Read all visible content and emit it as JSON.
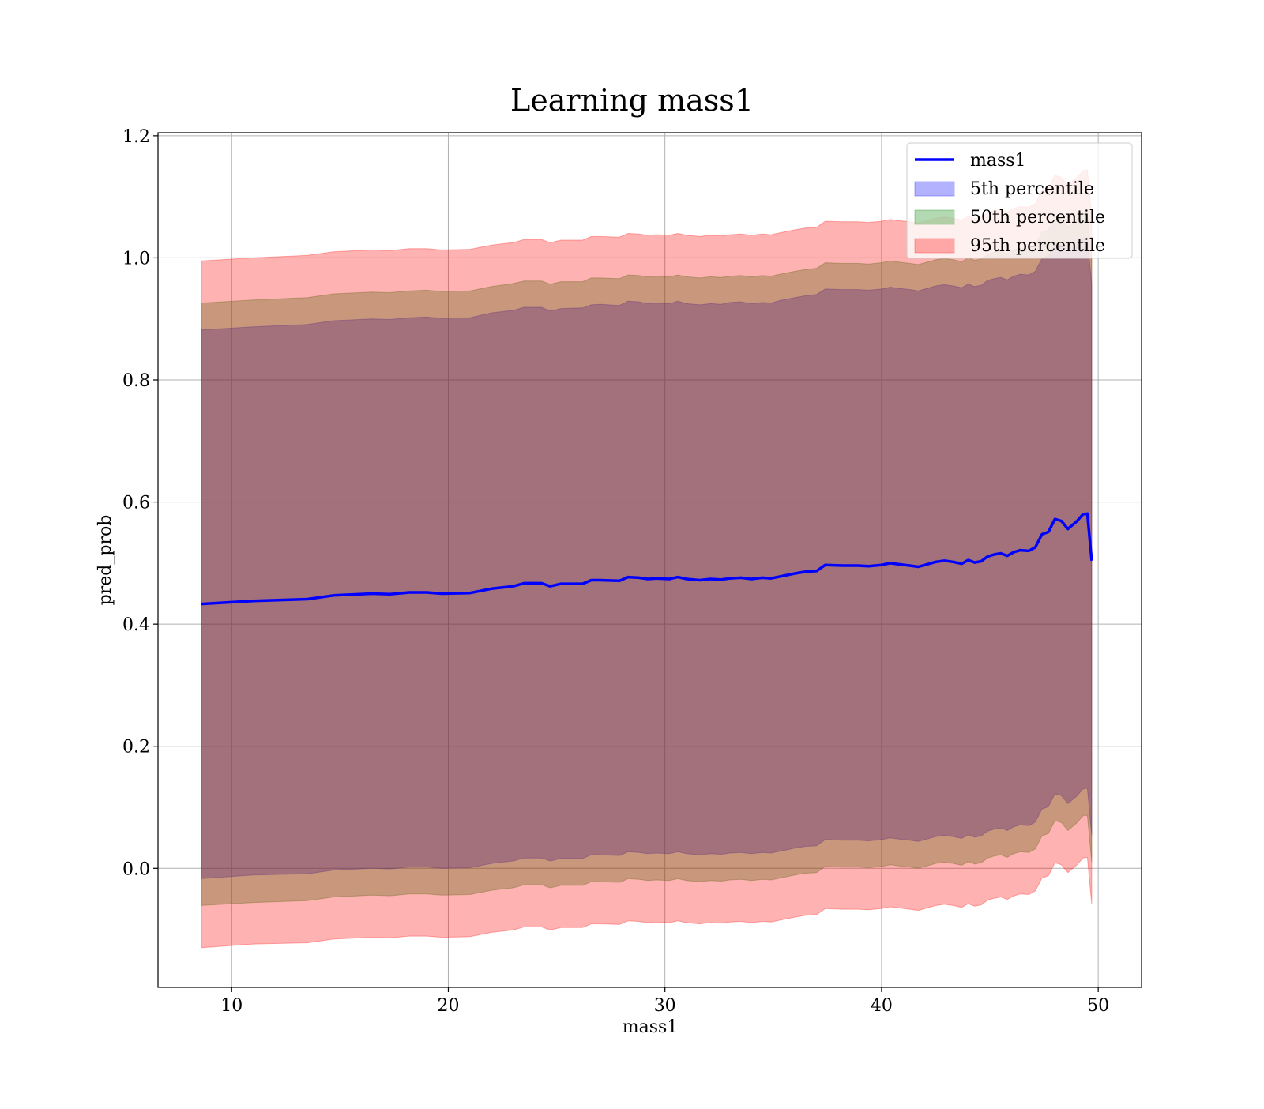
{
  "chart_data": {
    "type": "area",
    "title": "Learning mass1",
    "xlabel": "mass1",
    "ylabel": "pred_prob",
    "xlim": [
      6.6,
      52.0
    ],
    "ylim": [
      -0.195,
      1.205
    ],
    "xticks": [
      10,
      20,
      30,
      40,
      50
    ],
    "yticks": [
      0.0,
      0.2,
      0.4,
      0.6,
      0.8,
      1.0,
      1.2
    ],
    "grid": true,
    "legend_position": "top-right",
    "x": [
      8.6,
      11.0,
      13.5,
      14.7,
      16.5,
      17.3,
      18.2,
      19.0,
      19.7,
      21.0,
      22.0,
      23.0,
      23.5,
      24.3,
      24.7,
      25.2,
      26.2,
      26.6,
      27.0,
      27.9,
      28.3,
      28.8,
      29.2,
      29.6,
      30.2,
      30.6,
      31.0,
      31.6,
      32.1,
      32.6,
      33.0,
      33.5,
      34.0,
      34.5,
      34.9,
      35.3,
      36.0,
      36.5,
      37.0,
      37.4,
      38.2,
      38.9,
      39.4,
      40.0,
      40.4,
      40.8,
      41.3,
      41.7,
      42.1,
      42.5,
      42.9,
      43.3,
      43.7,
      44.0,
      44.3,
      44.6,
      44.9,
      45.2,
      45.5,
      45.8,
      46.1,
      46.4,
      46.8,
      47.1,
      47.4,
      47.7,
      48.0,
      48.3,
      48.6,
      49.0,
      49.3,
      49.5,
      49.7
    ],
    "series": [
      {
        "name": "mass1",
        "kind": "line",
        "color": "#0000ff",
        "values": [
          0.433,
          0.438,
          0.441,
          0.447,
          0.45,
          0.449,
          0.452,
          0.452,
          0.45,
          0.451,
          0.458,
          0.462,
          0.467,
          0.467,
          0.462,
          0.466,
          0.466,
          0.472,
          0.472,
          0.471,
          0.477,
          0.476,
          0.474,
          0.475,
          0.474,
          0.477,
          0.474,
          0.472,
          0.474,
          0.473,
          0.475,
          0.476,
          0.474,
          0.476,
          0.475,
          0.478,
          0.483,
          0.486,
          0.487,
          0.497,
          0.496,
          0.496,
          0.495,
          0.497,
          0.5,
          0.498,
          0.496,
          0.494,
          0.498,
          0.502,
          0.504,
          0.502,
          0.499,
          0.505,
          0.501,
          0.503,
          0.511,
          0.514,
          0.516,
          0.512,
          0.518,
          0.521,
          0.52,
          0.526,
          0.547,
          0.551,
          0.572,
          0.569,
          0.556,
          0.568,
          0.58,
          0.581,
          0.504
        ]
      },
      {
        "name": "5th percentile",
        "kind": "band",
        "color": "#0000ff",
        "upper": [
          0.882,
          0.887,
          0.891,
          0.897,
          0.9,
          0.899,
          0.902,
          0.903,
          0.901,
          0.902,
          0.91,
          0.914,
          0.919,
          0.919,
          0.913,
          0.917,
          0.918,
          0.923,
          0.924,
          0.922,
          0.929,
          0.928,
          0.925,
          0.926,
          0.925,
          0.929,
          0.925,
          0.923,
          0.925,
          0.924,
          0.927,
          0.928,
          0.925,
          0.927,
          0.926,
          0.93,
          0.935,
          0.938,
          0.94,
          0.949,
          0.948,
          0.948,
          0.947,
          0.949,
          0.952,
          0.95,
          0.948,
          0.946,
          0.95,
          0.954,
          0.956,
          0.954,
          0.951,
          0.957,
          0.953,
          0.955,
          0.963,
          0.966,
          0.968,
          0.964,
          0.97,
          0.973,
          0.972,
          0.978,
          0.999,
          1.003,
          1.024,
          1.021,
          1.008,
          1.02,
          1.032,
          1.033,
          0.956
        ],
        "lower": [
          -0.017,
          -0.011,
          -0.009,
          -0.003,
          0.0,
          -0.001,
          0.002,
          0.002,
          0.0,
          0.001,
          0.008,
          0.012,
          0.017,
          0.017,
          0.012,
          0.016,
          0.016,
          0.022,
          0.022,
          0.021,
          0.027,
          0.026,
          0.024,
          0.025,
          0.024,
          0.027,
          0.024,
          0.022,
          0.024,
          0.023,
          0.025,
          0.026,
          0.024,
          0.026,
          0.025,
          0.028,
          0.033,
          0.036,
          0.037,
          0.047,
          0.046,
          0.046,
          0.045,
          0.047,
          0.05,
          0.048,
          0.046,
          0.044,
          0.048,
          0.052,
          0.054,
          0.052,
          0.049,
          0.055,
          0.051,
          0.053,
          0.061,
          0.064,
          0.066,
          0.062,
          0.068,
          0.071,
          0.07,
          0.076,
          0.097,
          0.101,
          0.122,
          0.119,
          0.106,
          0.118,
          0.13,
          0.131,
          0.054
        ]
      },
      {
        "name": "50th percentile",
        "kind": "band",
        "color": "#008000",
        "upper": [
          0.926,
          0.931,
          0.935,
          0.941,
          0.944,
          0.943,
          0.946,
          0.947,
          0.945,
          0.946,
          0.953,
          0.958,
          0.962,
          0.962,
          0.957,
          0.961,
          0.961,
          0.967,
          0.967,
          0.966,
          0.972,
          0.971,
          0.969,
          0.97,
          0.969,
          0.972,
          0.969,
          0.967,
          0.969,
          0.968,
          0.97,
          0.971,
          0.969,
          0.971,
          0.97,
          0.973,
          0.978,
          0.981,
          0.983,
          0.992,
          0.991,
          0.991,
          0.99,
          0.992,
          0.995,
          0.993,
          0.991,
          0.989,
          0.993,
          0.997,
          0.999,
          0.997,
          0.994,
          1.0,
          0.996,
          0.998,
          1.006,
          1.009,
          1.011,
          1.007,
          1.013,
          1.016,
          1.015,
          1.021,
          1.042,
          1.046,
          1.067,
          1.064,
          1.051,
          1.063,
          1.075,
          1.076,
          0.999
        ],
        "lower": [
          -0.061,
          -0.056,
          -0.053,
          -0.047,
          -0.044,
          -0.045,
          -0.042,
          -0.042,
          -0.044,
          -0.043,
          -0.036,
          -0.032,
          -0.027,
          -0.027,
          -0.032,
          -0.028,
          -0.028,
          -0.022,
          -0.022,
          -0.023,
          -0.017,
          -0.018,
          -0.02,
          -0.019,
          -0.02,
          -0.017,
          -0.02,
          -0.022,
          -0.02,
          -0.021,
          -0.019,
          -0.018,
          -0.02,
          -0.018,
          -0.019,
          -0.016,
          -0.011,
          -0.008,
          -0.007,
          0.003,
          0.002,
          0.002,
          0.001,
          0.003,
          0.006,
          0.004,
          0.002,
          0.0,
          0.004,
          0.008,
          0.01,
          0.008,
          0.005,
          0.011,
          0.007,
          0.009,
          0.017,
          0.02,
          0.022,
          0.018,
          0.024,
          0.027,
          0.026,
          0.032,
          0.053,
          0.057,
          0.078,
          0.075,
          0.062,
          0.074,
          0.086,
          0.087,
          0.01
        ]
      },
      {
        "name": "95th percentile",
        "kind": "band",
        "color": "#ff0000",
        "upper": [
          0.995,
          1.0,
          1.004,
          1.01,
          1.013,
          1.012,
          1.015,
          1.015,
          1.013,
          1.014,
          1.021,
          1.025,
          1.03,
          1.03,
          1.025,
          1.029,
          1.029,
          1.035,
          1.035,
          1.034,
          1.04,
          1.039,
          1.037,
          1.038,
          1.037,
          1.04,
          1.037,
          1.035,
          1.037,
          1.036,
          1.038,
          1.039,
          1.037,
          1.039,
          1.038,
          1.041,
          1.046,
          1.049,
          1.05,
          1.06,
          1.059,
          1.059,
          1.058,
          1.06,
          1.063,
          1.061,
          1.059,
          1.057,
          1.061,
          1.065,
          1.067,
          1.065,
          1.062,
          1.068,
          1.064,
          1.066,
          1.074,
          1.077,
          1.079,
          1.075,
          1.081,
          1.084,
          1.083,
          1.089,
          1.11,
          1.114,
          1.135,
          1.132,
          1.119,
          1.131,
          1.143,
          1.144,
          1.067
        ],
        "lower": [
          -0.13,
          -0.124,
          -0.122,
          -0.116,
          -0.113,
          -0.114,
          -0.111,
          -0.111,
          -0.113,
          -0.112,
          -0.105,
          -0.101,
          -0.096,
          -0.096,
          -0.101,
          -0.097,
          -0.097,
          -0.091,
          -0.091,
          -0.092,
          -0.086,
          -0.087,
          -0.089,
          -0.088,
          -0.089,
          -0.086,
          -0.089,
          -0.091,
          -0.089,
          -0.09,
          -0.088,
          -0.087,
          -0.089,
          -0.087,
          -0.088,
          -0.085,
          -0.08,
          -0.077,
          -0.076,
          -0.066,
          -0.067,
          -0.067,
          -0.068,
          -0.066,
          -0.063,
          -0.065,
          -0.067,
          -0.069,
          -0.065,
          -0.061,
          -0.059,
          -0.061,
          -0.064,
          -0.058,
          -0.062,
          -0.06,
          -0.052,
          -0.049,
          -0.047,
          -0.051,
          -0.045,
          -0.042,
          -0.043,
          -0.037,
          -0.016,
          -0.012,
          0.009,
          0.006,
          -0.007,
          0.005,
          0.017,
          0.018,
          -0.059
        ]
      }
    ]
  }
}
